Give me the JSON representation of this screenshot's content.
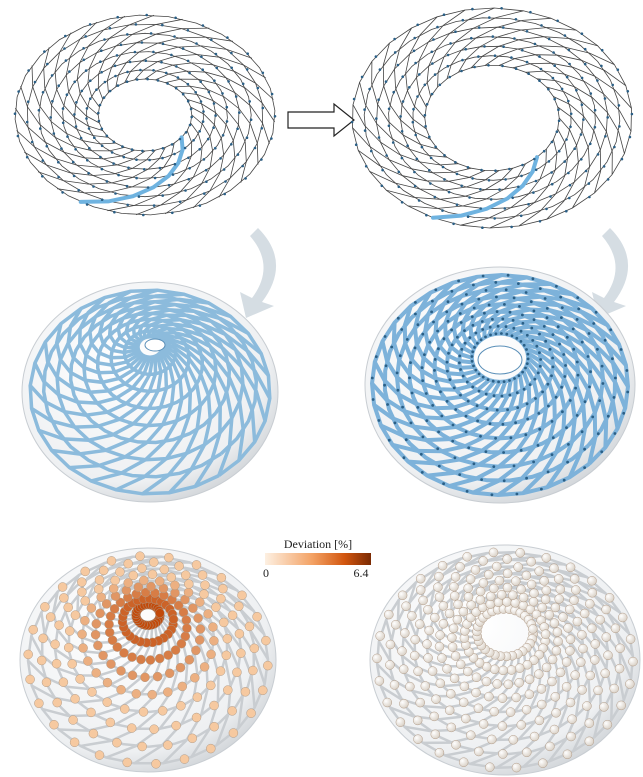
{
  "legend": {
    "title": "Deviation [%]",
    "min": 0,
    "max": 6.4
  }
}
